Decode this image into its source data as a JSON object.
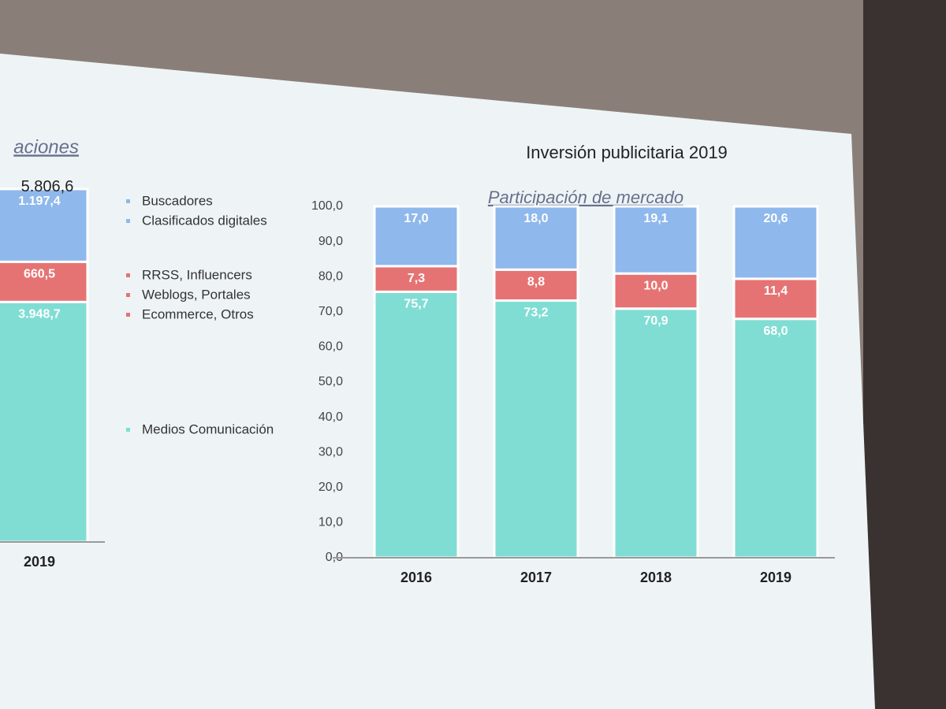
{
  "chart_data": [
    {
      "type": "bar",
      "stacked": true,
      "title": "aciones",
      "categories": [
        "2019"
      ],
      "ylim": [
        0,
        6000
      ],
      "series": [
        {
          "legend": [
            "Medios Comunicación"
          ],
          "color": "#80ddd4",
          "values": [
            3948.7
          ],
          "value_labels": [
            "3.948,7"
          ]
        },
        {
          "legend": [
            "RRSS, Influencers",
            "Weblogs, Portales",
            "Ecommerce, Otros"
          ],
          "color": "#e67373",
          "values": [
            660.5
          ],
          "value_labels": [
            "660,5"
          ]
        },
        {
          "legend": [
            "Buscadores",
            "Clasificados digitales"
          ],
          "color": "#8fb8ec",
          "values": [
            1197.4
          ],
          "value_labels": [
            "1.197,4"
          ]
        }
      ],
      "totals": [
        5806.6
      ],
      "total_labels": [
        "5.806,6"
      ]
    },
    {
      "type": "bar",
      "stacked": true,
      "title": "Inversión publicitaria 2019",
      "subtitle": "Participación de mercado",
      "categories": [
        "2016",
        "2017",
        "2018",
        "2019"
      ],
      "ylim": [
        0,
        100
      ],
      "yticks": [
        {
          "value": 0,
          "label": "0,0"
        },
        {
          "value": 10,
          "label": "10,0"
        },
        {
          "value": 20,
          "label": "20,0"
        },
        {
          "value": 30,
          "label": "30,0"
        },
        {
          "value": 40,
          "label": "40,0"
        },
        {
          "value": 50,
          "label": "50,0"
        },
        {
          "value": 60,
          "label": "60,0"
        },
        {
          "value": 70,
          "label": "70,0"
        },
        {
          "value": 80,
          "label": "80,0"
        },
        {
          "value": 90,
          "label": "90,0"
        },
        {
          "value": 100,
          "label": "100,0"
        }
      ],
      "grid": true,
      "series": [
        {
          "color": "#80ddd4",
          "values": [
            75.7,
            73.2,
            70.9,
            68.0
          ],
          "value_labels": [
            "75,7",
            "73,2",
            "70,9",
            "68,0"
          ]
        },
        {
          "color": "#e67373",
          "values": [
            7.3,
            8.8,
            10.0,
            11.4
          ],
          "value_labels": [
            "7,3",
            "8,8",
            "10,0",
            "11,4"
          ]
        },
        {
          "color": "#8fb8ec",
          "values": [
            17.0,
            18.0,
            19.1,
            20.6
          ],
          "value_labels": [
            "17,0",
            "18,0",
            "19,1",
            "20,6"
          ]
        }
      ]
    }
  ]
}
